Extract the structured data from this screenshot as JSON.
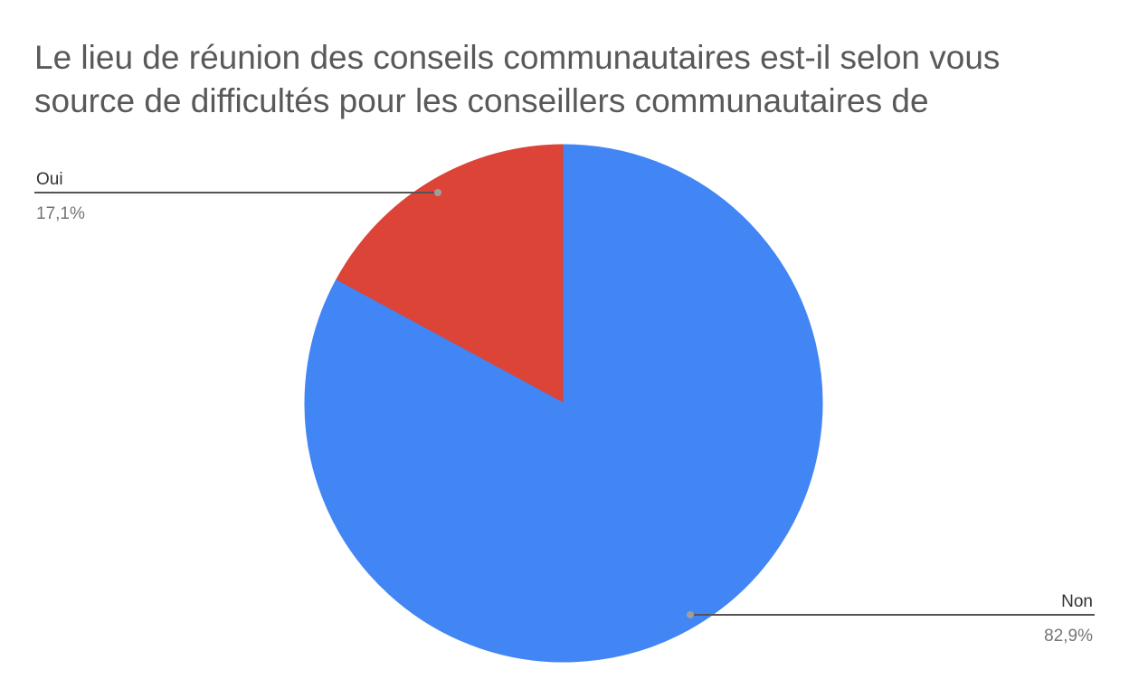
{
  "chart_data": {
    "type": "pie",
    "title_lines": [
      "Le lieu de réunion des conseils communautaires est-il selon vous",
      "source de difficultés pour les conseillers communautaires de"
    ],
    "slices": [
      {
        "label": "Oui",
        "value": 17.1,
        "display": "17,1%",
        "color": "#db4437"
      },
      {
        "label": "Non",
        "value": 82.9,
        "display": "82,9%",
        "color": "#4285f4"
      }
    ],
    "start_angle": "top",
    "direction": "counterclockwise",
    "legend": "none",
    "labels": "outside with leader lines"
  }
}
